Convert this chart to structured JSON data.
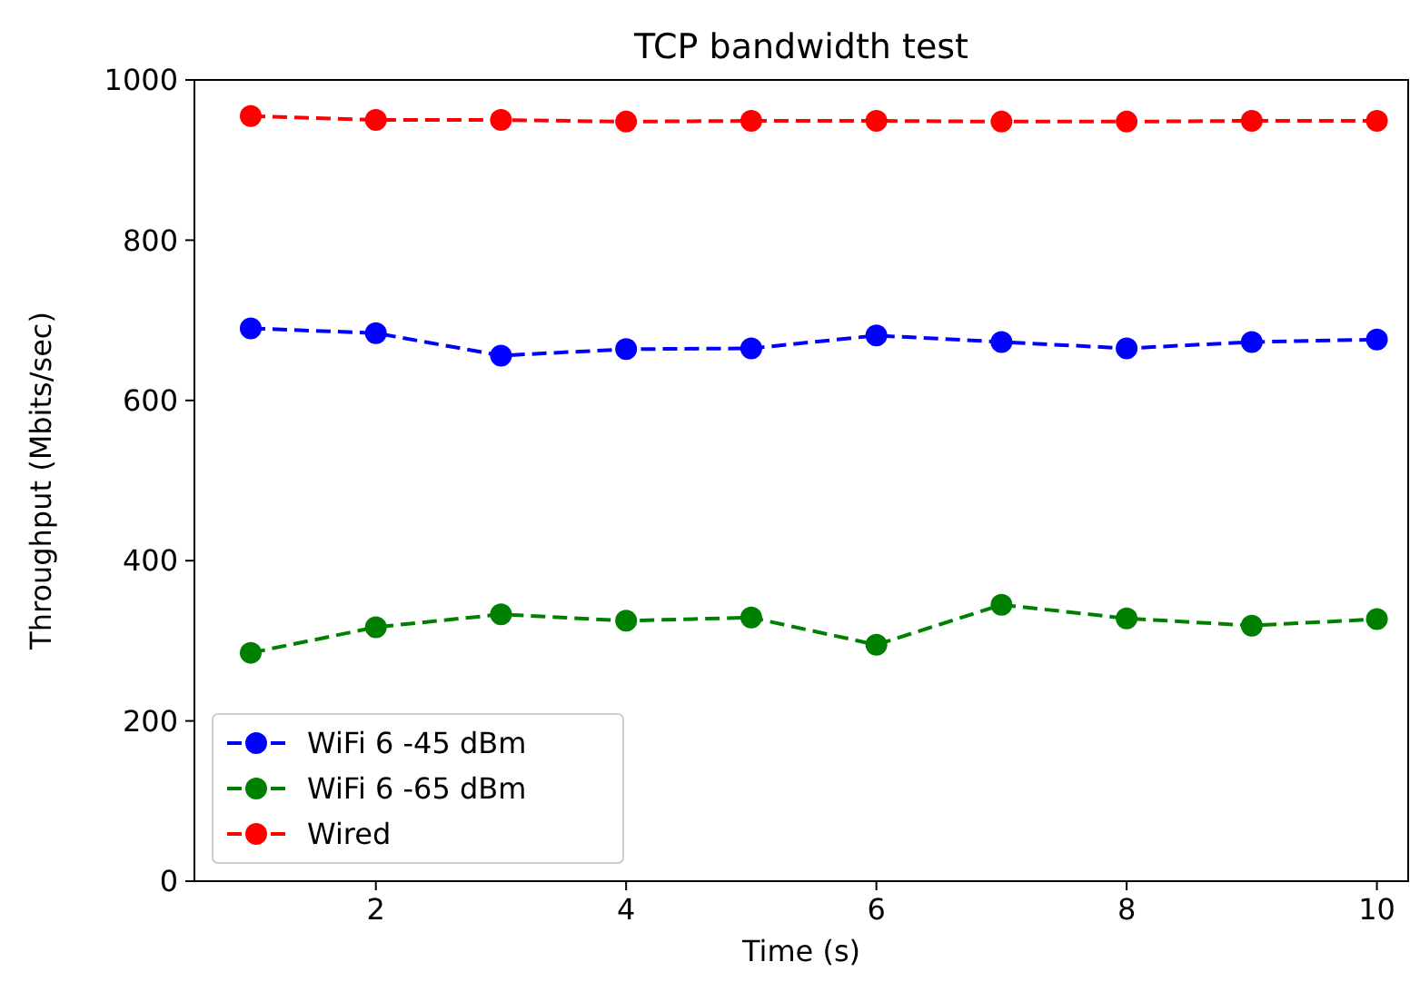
{
  "chart_data": {
    "type": "line",
    "title": "TCP bandwidth test",
    "xlabel": "Time (s)",
    "ylabel": "Throughput (Mbits/sec)",
    "x": [
      1,
      2,
      3,
      4,
      5,
      6,
      7,
      8,
      9,
      10
    ],
    "series": [
      {
        "name": "WiFi 6 -45 dBm",
        "color": "#0000ff",
        "values": [
          690,
          684,
          656,
          664,
          665,
          681,
          673,
          665,
          673,
          676
        ]
      },
      {
        "name": "WiFi 6 -65 dBm",
        "color": "#008000",
        "values": [
          285,
          317,
          333,
          325,
          329,
          295,
          345,
          328,
          319,
          327
        ]
      },
      {
        "name": "Wired",
        "color": "#ff0000",
        "values": [
          955,
          950,
          950,
          948,
          949,
          949,
          948,
          948,
          949,
          949
        ]
      }
    ],
    "xlim": [
      0.55,
      10.25
    ],
    "xticks": [
      2,
      4,
      6,
      8,
      10
    ],
    "ylim": [
      0,
      1000
    ],
    "yticks": [
      0,
      200,
      400,
      600,
      800,
      1000
    ],
    "legend": "bottom left",
    "marker": "circle",
    "line_style": "dashed",
    "grid": false
  }
}
